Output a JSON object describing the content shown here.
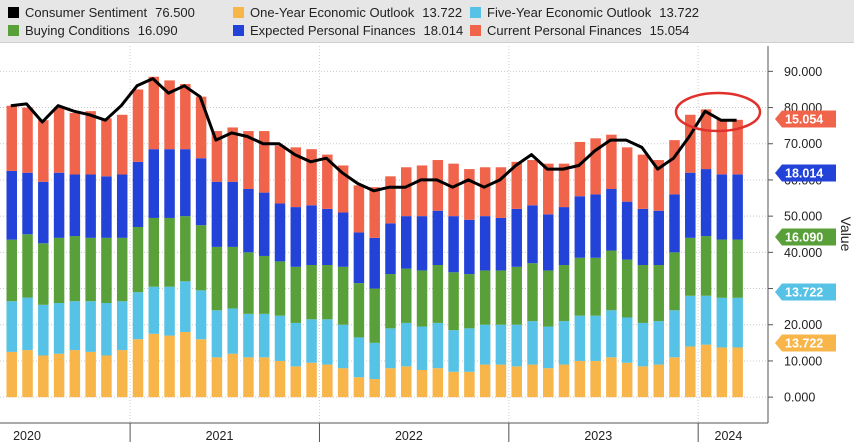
{
  "chart_data": {
    "type": "bar",
    "stacked": true,
    "x": [
      "2020-05",
      "2020-06",
      "2020-07",
      "2020-08",
      "2020-09",
      "2020-10",
      "2020-11",
      "2020-12",
      "2021-01",
      "2021-02",
      "2021-03",
      "2021-04",
      "2021-05",
      "2021-06",
      "2021-07",
      "2021-08",
      "2021-09",
      "2021-10",
      "2021-11",
      "2021-12",
      "2022-01",
      "2022-02",
      "2022-03",
      "2022-04",
      "2022-05",
      "2022-06",
      "2022-07",
      "2022-08",
      "2022-09",
      "2022-10",
      "2022-11",
      "2022-12",
      "2023-01",
      "2023-02",
      "2023-03",
      "2023-04",
      "2023-05",
      "2023-06",
      "2023-07",
      "2023-08",
      "2023-09",
      "2023-10",
      "2023-11",
      "2023-12",
      "2024-01",
      "2024-02",
      "2024-03"
    ],
    "series": [
      {
        "name": "One-Year Economic Outlook",
        "color": "#f7b54a",
        "values": [
          12.5,
          13,
          11.5,
          12,
          13,
          12.5,
          11.5,
          13,
          16,
          17.5,
          17,
          18,
          16,
          11,
          12,
          11,
          11,
          10,
          8.5,
          9.5,
          9,
          8,
          5.5,
          5,
          8,
          8.5,
          7.5,
          8,
          7,
          7,
          9,
          9,
          8.5,
          9,
          8,
          9,
          10,
          10,
          11,
          9.5,
          8.5,
          9,
          11,
          14,
          14.5,
          13.722,
          13.722
        ]
      },
      {
        "name": "Five-Year Economic Outlook",
        "color": "#55c2e6",
        "values": [
          14,
          14.5,
          14,
          14,
          13.5,
          14,
          14.5,
          13.5,
          13,
          13,
          13.5,
          14,
          13.5,
          13,
          12.5,
          12,
          12,
          12.5,
          12,
          12,
          12.5,
          12,
          11,
          10,
          11,
          12,
          12,
          12.5,
          11.5,
          12,
          11,
          11,
          11.5,
          12,
          11.5,
          12,
          12.5,
          12.5,
          13,
          12.5,
          12,
          12,
          13,
          14,
          13.5,
          13.722,
          13.722
        ]
      },
      {
        "name": "Buying Conditions",
        "color": "#5aa03a",
        "values": [
          17,
          17.5,
          17,
          18,
          18,
          17.5,
          18,
          17.5,
          18,
          19,
          19,
          18,
          18,
          17.5,
          17,
          17,
          16,
          15,
          15.5,
          15,
          15,
          16,
          15,
          15,
          15,
          15,
          15.5,
          16,
          16,
          15,
          15,
          15,
          16,
          16,
          15.5,
          15.5,
          16,
          16,
          16.5,
          16,
          16,
          15.5,
          16,
          16,
          16.5,
          16.09,
          16.09
        ]
      },
      {
        "name": "Expected Personal Finances",
        "color": "#2342d8",
        "values": [
          19,
          17,
          17,
          18,
          17,
          17.5,
          17,
          17.5,
          18,
          19,
          19,
          18.5,
          18.5,
          18,
          18,
          17.5,
          17.5,
          16,
          16.5,
          16.5,
          15.5,
          15,
          14,
          14,
          14,
          14.5,
          15,
          15,
          15.5,
          15,
          15,
          14.5,
          16,
          16,
          15.5,
          16,
          17,
          17.5,
          17,
          16,
          15.5,
          15,
          16,
          18,
          18.5,
          18.014,
          18.014
        ]
      },
      {
        "name": "Current Personal Finances",
        "color": "#f0644c",
        "values": [
          18,
          18,
          17,
          18,
          17,
          17.5,
          16,
          16.5,
          20,
          20,
          19,
          18,
          17,
          14,
          15,
          16,
          17,
          16,
          16.5,
          15.5,
          15,
          13,
          13,
          14,
          13,
          13.5,
          14,
          14,
          14.5,
          14,
          13.5,
          14,
          13,
          12.5,
          14,
          12,
          15,
          15.5,
          15,
          15,
          15,
          14,
          15,
          16,
          16.5,
          15.054,
          15.054
        ]
      }
    ],
    "line": {
      "name": "Consumer Sentiment",
      "color": "#000000",
      "values": [
        80.5,
        81,
        76,
        80.5,
        79,
        78,
        76.5,
        80.5,
        86,
        88,
        84,
        86,
        83,
        71,
        73,
        72,
        70,
        70,
        67,
        65,
        66,
        62,
        59,
        57,
        58,
        58,
        60,
        60,
        58,
        60,
        58,
        60,
        64,
        67,
        63,
        63,
        64,
        68,
        71,
        71,
        69,
        63,
        66,
        72,
        79,
        76.5,
        76.5
      ]
    },
    "legend_rows": [
      [
        {
          "name": "Consumer Sentiment",
          "value": "76.500",
          "color": "#000000"
        },
        {
          "name": "One-Year Economic Outlook",
          "value": "13.722",
          "color": "#f7b54a"
        },
        {
          "name": "Five-Year Economic Outlook",
          "value": "13.722",
          "color": "#55c2e6"
        }
      ],
      [
        {
          "name": "Buying Conditions",
          "value": "16.090",
          "color": "#5aa03a"
        },
        {
          "name": "Expected Personal Finances",
          "value": "18.014",
          "color": "#2342d8"
        },
        {
          "name": "Current Personal Finances",
          "value": "15.054",
          "color": "#f0644c"
        }
      ]
    ],
    "y_ticks": [
      "0.000",
      "10.000",
      "20.000",
      "30.000",
      "40.000",
      "50.000",
      "60.000",
      "70.000",
      "80.000",
      "90.000"
    ],
    "ylim": [
      -3,
      97
    ],
    "ylabel": "Value",
    "x_tick_labels": [
      "2020",
      "2021",
      "2022",
      "2023",
      "2024"
    ],
    "grid": true,
    "value_tags": [
      {
        "value": 15.054,
        "label": "15.054",
        "color": "#f0644c"
      },
      {
        "value": 18.014,
        "label": "18.014",
        "color": "#2342d8"
      },
      {
        "value": 16.09,
        "label": "16.090",
        "color": "#5aa03a"
      },
      {
        "value": 13.722,
        "label": "13.722",
        "color": "#55c2e6"
      },
      {
        "value": 13.722,
        "label": "13.722",
        "color": "#f7b54a"
      }
    ],
    "annotation": {
      "type": "ellipse",
      "around": "latest Consumer Sentiment values",
      "color": "#e0312c"
    }
  }
}
